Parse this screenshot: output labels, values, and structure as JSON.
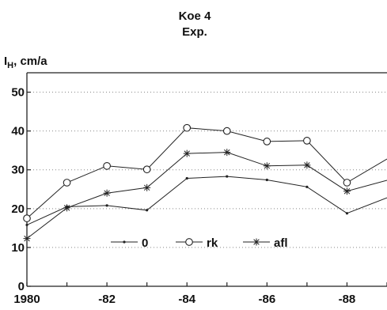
{
  "chart_data": {
    "type": "line",
    "title": "Koe 4",
    "subtitle": "Exp.",
    "ylabel_main": "I",
    "ylabel_sub": "H",
    "ylabel_unit": ", cm/a",
    "xlabel": "",
    "xlim": [
      1980,
      1989
    ],
    "ylim": [
      0,
      55
    ],
    "x_ticks": [
      1980,
      1982,
      1984,
      1986,
      1988
    ],
    "x_tick_labels": [
      "1980",
      "-82",
      "-84",
      "-86",
      "-88"
    ],
    "y_ticks": [
      0,
      10,
      20,
      30,
      40,
      50
    ],
    "y_tick_labels": [
      "0",
      "10",
      "20",
      "30",
      "40",
      "50"
    ],
    "grid": "horizontal dotted",
    "legend_position": "lower center",
    "x": [
      1980,
      1981,
      1982,
      1983,
      1984,
      1985,
      1986,
      1987,
      1988,
      1989
    ],
    "series": [
      {
        "name": "0",
        "marker": "dot",
        "values": [
          15.8,
          20.5,
          20.8,
          19.6,
          27.8,
          28.3,
          27.4,
          25.6,
          18.8,
          22.8
        ]
      },
      {
        "name": "rk",
        "marker": "circle",
        "values": [
          17.5,
          26.7,
          31.0,
          30.1,
          40.8,
          40.0,
          37.3,
          37.5,
          26.7,
          32.8
        ]
      },
      {
        "name": "afl",
        "marker": "star",
        "values": [
          12.3,
          20.2,
          24.0,
          25.4,
          34.2,
          34.5,
          31.0,
          31.2,
          24.5,
          27.3
        ]
      }
    ],
    "colors": {
      "line": "#222222",
      "grid": "#888888",
      "text": "#111111"
    }
  }
}
